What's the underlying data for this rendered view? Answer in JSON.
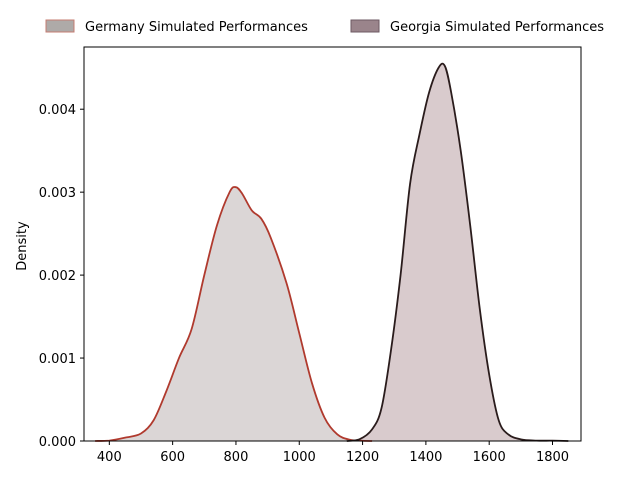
{
  "chart_data": {
    "type": "area",
    "subtype": "kde-density",
    "title": "",
    "xlabel": "",
    "ylabel": "Density",
    "xlim": [
      320,
      1890
    ],
    "ylim": [
      0,
      0.00475
    ],
    "xticks": [
      400,
      600,
      800,
      1000,
      1200,
      1400,
      1600,
      1800
    ],
    "yticks": [
      0.0,
      0.001,
      0.002,
      0.003,
      0.004
    ],
    "ytick_labels": [
      "0.000",
      "0.001",
      "0.002",
      "0.003",
      "0.004"
    ],
    "grid": false,
    "legend_placement": "top-center-outside",
    "series": [
      {
        "name": "Germany Simulated Performances",
        "line_color": "#b03a2e",
        "fill_color": "#d5cfcf",
        "legend_fill": "#aeaaa8",
        "legend_edge": "#c47c72",
        "points": [
          [
            355,
            0.0
          ],
          [
            400,
            5e-06
          ],
          [
            450,
            4e-05
          ],
          [
            500,
            9e-05
          ],
          [
            540,
            0.00025
          ],
          [
            580,
            0.0006
          ],
          [
            620,
            0.001
          ],
          [
            660,
            0.00135
          ],
          [
            700,
            0.002
          ],
          [
            740,
            0.0026
          ],
          [
            780,
            0.003
          ],
          [
            800,
            0.00306
          ],
          [
            820,
            0.00298
          ],
          [
            850,
            0.00278
          ],
          [
            880,
            0.00268
          ],
          [
            910,
            0.00245
          ],
          [
            960,
            0.0019
          ],
          [
            1000,
            0.0013
          ],
          [
            1040,
            0.0007
          ],
          [
            1080,
            0.00028
          ],
          [
            1120,
            8e-05
          ],
          [
            1160,
            1.5e-05
          ],
          [
            1200,
            3e-06
          ],
          [
            1230,
            0.0
          ]
        ]
      },
      {
        "name": "Georgia Simulated Performances",
        "line_color": "#2a1c1c",
        "fill_color": "#d2c2c4",
        "legend_fill": "#9a848b",
        "legend_edge": "#6e5a63",
        "points": [
          [
            1150,
            0.0
          ],
          [
            1190,
            2e-05
          ],
          [
            1230,
            0.00014
          ],
          [
            1260,
            0.0004
          ],
          [
            1290,
            0.0011
          ],
          [
            1320,
            0.002
          ],
          [
            1350,
            0.0031
          ],
          [
            1380,
            0.0037
          ],
          [
            1410,
            0.0042
          ],
          [
            1440,
            0.0045
          ],
          [
            1460,
            0.00452
          ],
          [
            1480,
            0.0042
          ],
          [
            1510,
            0.0035
          ],
          [
            1540,
            0.0026
          ],
          [
            1570,
            0.0016
          ],
          [
            1600,
            0.0008
          ],
          [
            1630,
            0.00025
          ],
          [
            1660,
            8e-05
          ],
          [
            1700,
            2e-05
          ],
          [
            1750,
            5e-06
          ],
          [
            1800,
            4e-06
          ],
          [
            1850,
            0.0
          ]
        ]
      }
    ]
  }
}
